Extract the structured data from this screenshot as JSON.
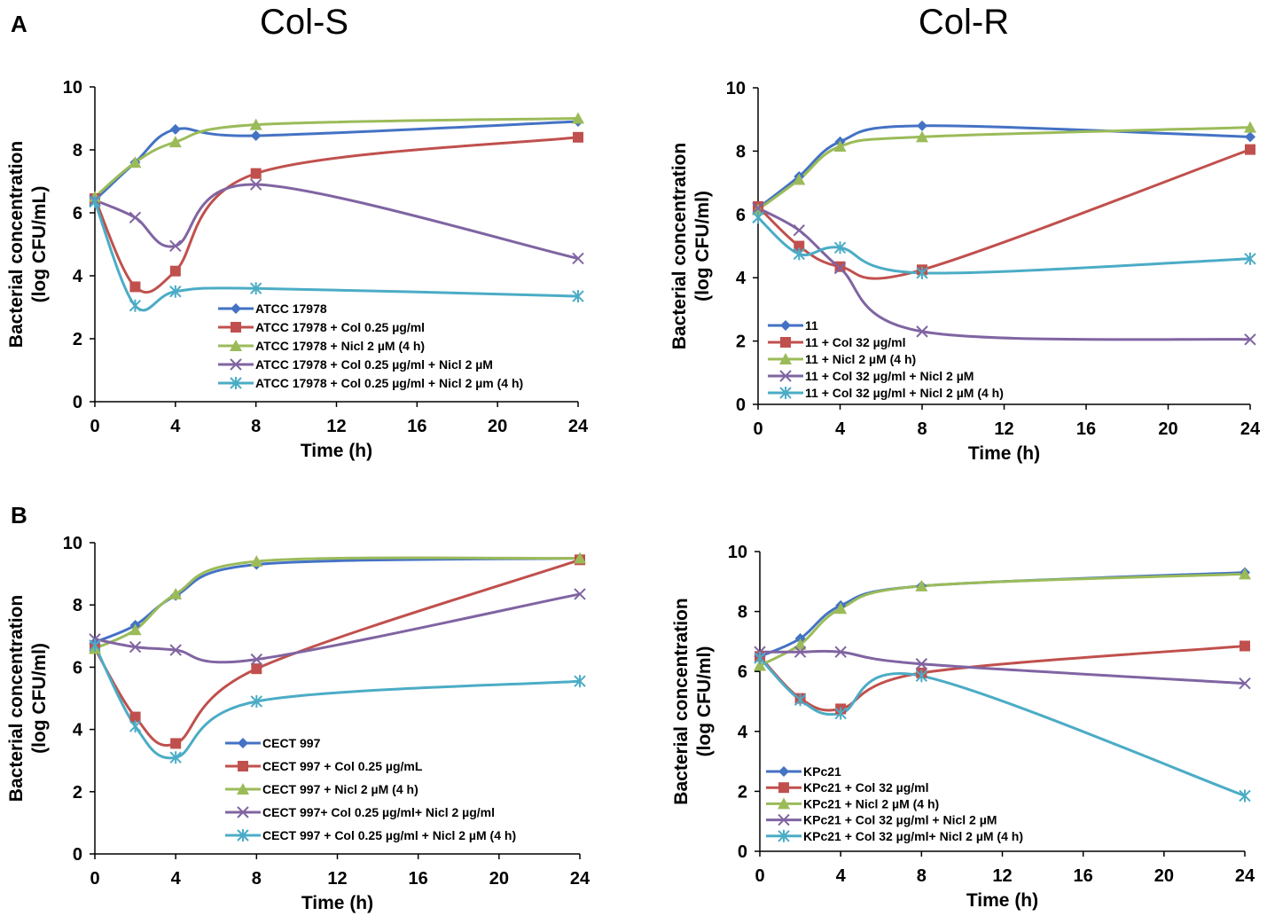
{
  "labels": {
    "panel_a": "A",
    "panel_b": "B",
    "col_s": "Col-S",
    "col_r": "Col-R"
  },
  "chart_data": [
    {
      "type": "line",
      "x_label": "Time (h)",
      "y_label": [
        "Bacterial concentration",
        "(log CFU/mL)"
      ],
      "x": [
        0,
        2,
        4,
        8,
        24
      ],
      "xlim": [
        0,
        24
      ],
      "xticks": [
        0,
        4,
        8,
        12,
        16,
        20,
        24
      ],
      "ylim": [
        0,
        10
      ],
      "yticks": [
        0,
        2,
        4,
        6,
        8,
        10
      ],
      "series": [
        {
          "name": "ATCC 17978",
          "color": "#4472c4",
          "marker": "diamond",
          "values": [
            6.4,
            7.6,
            8.65,
            8.45,
            8.9
          ]
        },
        {
          "name": "ATCC 17978 + Col 0.25 µg/ml",
          "color": "#c0504d",
          "marker": "square",
          "values": [
            6.45,
            3.65,
            4.15,
            7.25,
            8.4
          ]
        },
        {
          "name": "ATCC 17978 + Nicl 2 µM (4 h)",
          "color": "#9bbb59",
          "marker": "triangle",
          "values": [
            6.5,
            7.6,
            8.25,
            8.8,
            9.0
          ]
        },
        {
          "name": "ATCC 17978 + Col 0.25 µg/ml + Nicl 2 µM",
          "color": "#8064a2",
          "marker": "x",
          "values": [
            6.4,
            5.85,
            4.95,
            6.9,
            4.55
          ]
        },
        {
          "name": "ATCC 17978 + Col 0.25 µg/ml + Nicl 2 µm (4 h)",
          "color": "#4bacc6",
          "marker": "asterisk",
          "values": [
            6.35,
            3.05,
            3.5,
            3.6,
            3.35
          ]
        }
      ]
    },
    {
      "type": "line",
      "x_label": "Time (h)",
      "y_label": [
        "Bacterial concentration",
        "(log CFU/ml)"
      ],
      "x": [
        0,
        2,
        4,
        8,
        24
      ],
      "xlim": [
        0,
        24
      ],
      "xticks": [
        0,
        4,
        8,
        12,
        16,
        20,
        24
      ],
      "ylim": [
        0,
        10
      ],
      "yticks": [
        0,
        2,
        4,
        6,
        8,
        10
      ],
      "series": [
        {
          "name": "11",
          "color": "#4472c4",
          "marker": "diamond",
          "values": [
            6.2,
            7.2,
            8.3,
            8.8,
            8.45
          ]
        },
        {
          "name": "11 + Col 32 µg/ml",
          "color": "#c0504d",
          "marker": "square",
          "values": [
            6.25,
            5.0,
            4.35,
            4.25,
            8.05
          ]
        },
        {
          "name": "11 + Nicl 2 µM (4 h)",
          "color": "#9bbb59",
          "marker": "triangle",
          "values": [
            6.15,
            7.1,
            8.15,
            8.45,
            8.75
          ]
        },
        {
          "name": "11 + Col 32 µg/ml + Nicl 2 µM",
          "color": "#8064a2",
          "marker": "x",
          "values": [
            6.2,
            5.5,
            4.3,
            2.3,
            2.05
          ]
        },
        {
          "name": "11 + Col 32 µg/ml + Nicl 2 µM (4 h)",
          "color": "#4bacc6",
          "marker": "asterisk",
          "values": [
            5.9,
            4.75,
            4.95,
            4.15,
            4.6
          ]
        }
      ]
    },
    {
      "type": "line",
      "x_label": "Time (h)",
      "y_label": [
        "Bacterial concentration",
        "(log CFU/ml)"
      ],
      "x": [
        0,
        2,
        4,
        8,
        24
      ],
      "xlim": [
        0,
        24
      ],
      "xticks": [
        0,
        4,
        8,
        12,
        16,
        20,
        24
      ],
      "ylim": [
        0,
        10
      ],
      "yticks": [
        0,
        2,
        4,
        6,
        8,
        10
      ],
      "series": [
        {
          "name": "CECT 997",
          "color": "#4472c4",
          "marker": "diamond",
          "values": [
            6.8,
            7.35,
            8.3,
            9.3,
            9.5
          ]
        },
        {
          "name": "CECT 997 + Col 0.25 µg/mL",
          "color": "#c0504d",
          "marker": "square",
          "values": [
            6.6,
            4.4,
            3.55,
            5.95,
            9.45
          ]
        },
        {
          "name": "CECT 997 + Nicl 2 µM (4 h)",
          "color": "#9bbb59",
          "marker": "triangle",
          "values": [
            6.6,
            7.2,
            8.35,
            9.4,
            9.5
          ]
        },
        {
          "name": "CECT 997+ Col 0.25 µg/ml+ Nicl 2  µg/ml",
          "color": "#8064a2",
          "marker": "x",
          "values": [
            6.9,
            6.65,
            6.55,
            6.25,
            8.35
          ]
        },
        {
          "name": "CECT 997 + Col 0.25 µg/ml + Nicl 2 µM  (4 h)",
          "color": "#4bacc6",
          "marker": "asterisk",
          "values": [
            6.7,
            4.1,
            3.1,
            4.9,
            5.55
          ]
        }
      ]
    },
    {
      "type": "line",
      "x_label": "Time (h)",
      "y_label": [
        "Bacterial concentration",
        "(log CFU/ml)"
      ],
      "x": [
        0,
        2,
        4,
        8,
        24
      ],
      "xlim": [
        0,
        24
      ],
      "xticks": [
        0,
        4,
        8,
        12,
        16,
        20,
        24
      ],
      "ylim": [
        0,
        10
      ],
      "yticks": [
        0,
        2,
        4,
        6,
        8,
        10
      ],
      "series": [
        {
          "name": "KPc21",
          "color": "#4472c4",
          "marker": "diamond",
          "values": [
            6.5,
            7.1,
            8.2,
            8.85,
            9.3
          ]
        },
        {
          "name": "KPc21 + Col 32 µg/ml",
          "color": "#c0504d",
          "marker": "square",
          "values": [
            6.5,
            5.1,
            4.75,
            5.95,
            6.85
          ]
        },
        {
          "name": "KPc21 + Nicl 2 µM (4 h)",
          "color": "#9bbb59",
          "marker": "triangle",
          "values": [
            6.2,
            6.9,
            8.1,
            8.85,
            9.25
          ]
        },
        {
          "name": "KPc21 + Col 32 µg/ml + Nicl 2 µM",
          "color": "#8064a2",
          "marker": "x",
          "values": [
            6.65,
            6.65,
            6.65,
            6.25,
            5.6
          ]
        },
        {
          "name": "KPc21 + Col 32 µg/ml+ Nicl 2 µM (4 h)",
          "color": "#4bacc6",
          "marker": "asterisk",
          "values": [
            6.45,
            5.05,
            4.6,
            5.85,
            1.85
          ]
        }
      ]
    }
  ]
}
